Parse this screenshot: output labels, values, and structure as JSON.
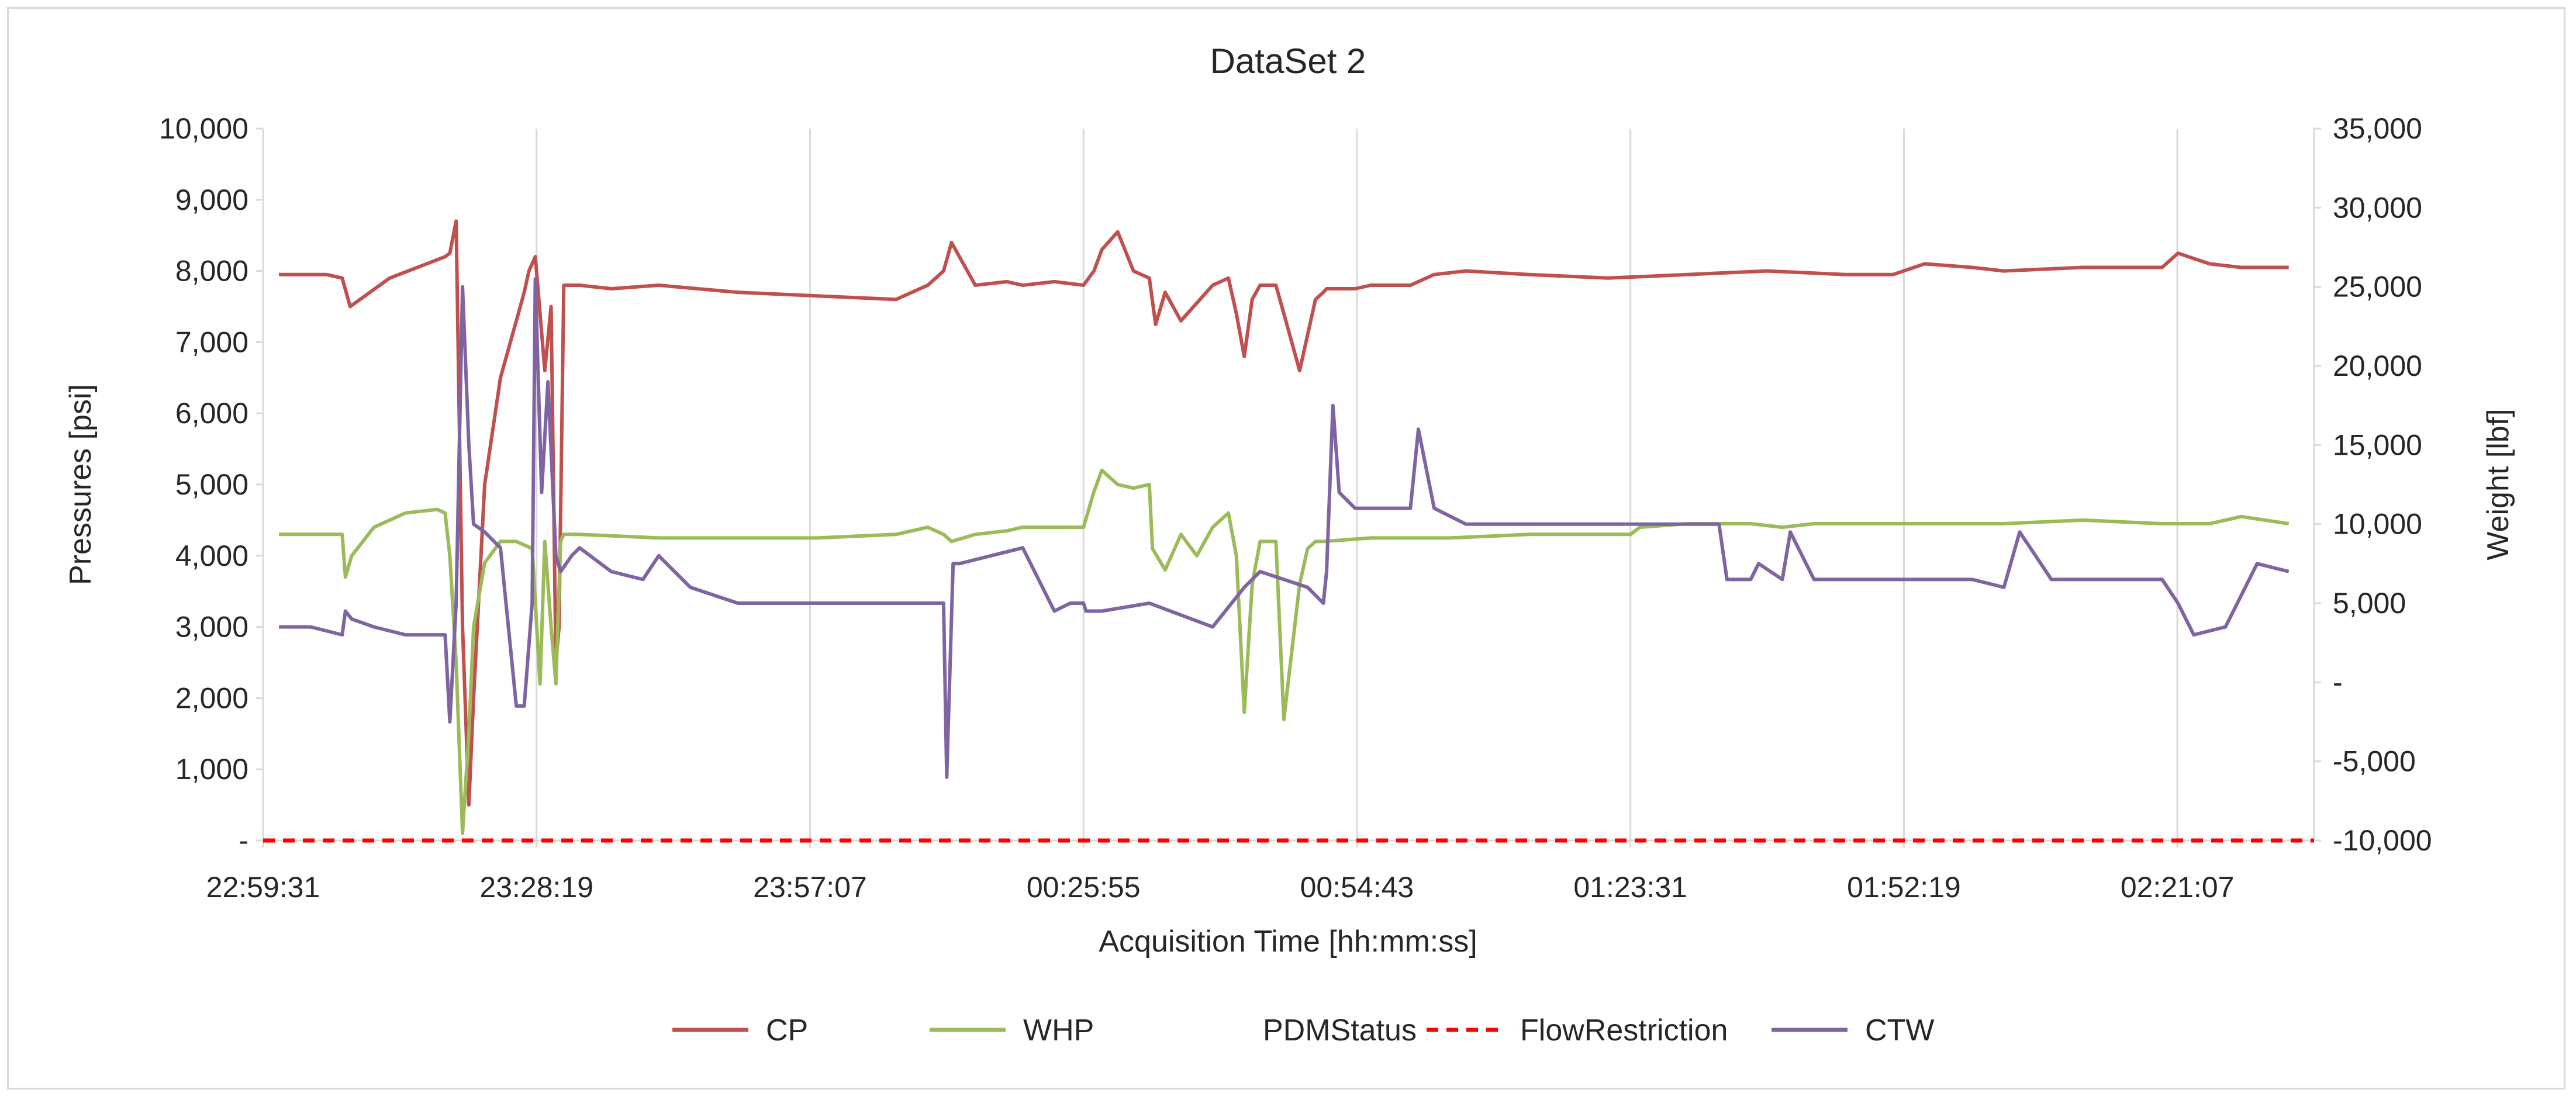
{
  "chart_data": {
    "type": "line",
    "title": "DataSet 2",
    "xlabel": "Acquisition Time [hh:mm:ss]",
    "ylabel": "Pressures [psi]",
    "y2label": "Weight [lbf]",
    "x_tick_labels": [
      "22:59:31",
      "23:28:19",
      "23:57:07",
      "00:25:55",
      "00:54:43",
      "01:23:31",
      "01:52:19",
      "02:21:07"
    ],
    "x_ticks_seconds": [
      0,
      1728,
      3456,
      5184,
      6912,
      8640,
      10368,
      12096
    ],
    "x_range_seconds": [
      0,
      12960
    ],
    "y_tick_labels": [
      "-",
      "1,000",
      "2,000",
      "3,000",
      "4,000",
      "5,000",
      "6,000",
      "7,000",
      "8,000",
      "9,000",
      "10,000"
    ],
    "ylim": [
      0,
      10000
    ],
    "y2_tick_labels": [
      "-10,000",
      "-5,000",
      "-",
      "5,000",
      "10,000",
      "15,000",
      "20,000",
      "25,000",
      "30,000",
      "35,000"
    ],
    "y2lim": [
      -10000,
      35000
    ],
    "grid": "vertical",
    "legend_position": "bottom",
    "series": [
      {
        "name": "CP",
        "axis": "left",
        "color": "#c0504d",
        "style": "solid",
        "x": [
          100,
          400,
          500,
          550,
          800,
          1150,
          1180,
          1220,
          1260,
          1300,
          1330,
          1400,
          1500,
          1600,
          1650,
          1680,
          1720,
          1780,
          1820,
          1850,
          1870,
          1900,
          2000,
          2200,
          2500,
          3000,
          3500,
          4000,
          4200,
          4300,
          4350,
          4500,
          4700,
          4800,
          5000,
          5184,
          5250,
          5300,
          5400,
          5500,
          5600,
          5640,
          5700,
          5800,
          6000,
          6100,
          6150,
          6200,
          6250,
          6300,
          6350,
          6400,
          6450,
          6550,
          6650,
          6700,
          6720,
          6800,
          6900,
          7000,
          7200,
          7250,
          7300,
          7400,
          7600,
          8000,
          8500,
          9000,
          9500,
          10000,
          10300,
          10500,
          10800,
          11000,
          11500,
          12000,
          12100,
          12300,
          12500,
          12800
        ],
        "y": [
          7950,
          7950,
          7900,
          7500,
          7900,
          8200,
          8250,
          8700,
          3000,
          500,
          2000,
          5000,
          6500,
          7300,
          7700,
          8000,
          8200,
          6600,
          7500,
          2500,
          3000,
          7800,
          7800,
          7750,
          7800,
          7700,
          7650,
          7600,
          7800,
          8000,
          8400,
          7800,
          7850,
          7800,
          7850,
          7800,
          8000,
          8300,
          8550,
          8000,
          7900,
          7250,
          7700,
          7300,
          7800,
          7900,
          7400,
          6800,
          7600,
          7800,
          7800,
          7800,
          7400,
          6600,
          7600,
          7700,
          7750,
          7750,
          7750,
          7800,
          7800,
          7800,
          7850,
          7950,
          8000,
          7950,
          7900,
          7950,
          8000,
          7950,
          7950,
          8100,
          8050,
          8000,
          8050,
          8050,
          8250,
          8100,
          8050,
          8050
        ]
      },
      {
        "name": "WHP",
        "axis": "left",
        "color": "#9bbb59",
        "style": "solid",
        "x": [
          100,
          500,
          520,
          560,
          700,
          900,
          1100,
          1150,
          1180,
          1220,
          1260,
          1300,
          1330,
          1400,
          1500,
          1600,
          1700,
          1750,
          1780,
          1820,
          1850,
          1880,
          1900,
          2000,
          2500,
          3000,
          3500,
          4000,
          4200,
          4300,
          4350,
          4500,
          4700,
          4800,
          5000,
          5184,
          5250,
          5300,
          5400,
          5500,
          5600,
          5620,
          5700,
          5800,
          5900,
          6000,
          6100,
          6150,
          6200,
          6250,
          6300,
          6350,
          6400,
          6450,
          6550,
          6600,
          6650,
          6700,
          7000,
          7500,
          8000,
          8640,
          8700,
          9000,
          9200,
          9400,
          9600,
          9800,
          10000,
          10300,
          10500,
          10800,
          11000,
          11500,
          12000,
          12300,
          12500,
          12800
        ],
        "y": [
          4300,
          4300,
          3700,
          4000,
          4400,
          4600,
          4650,
          4600,
          4000,
          2500,
          100,
          1500,
          3000,
          3900,
          4200,
          4200,
          4100,
          2200,
          4200,
          3000,
          2200,
          4200,
          4300,
          4300,
          4250,
          4250,
          4250,
          4300,
          4400,
          4300,
          4200,
          4300,
          4350,
          4400,
          4400,
          4400,
          4900,
          5200,
          5000,
          4950,
          5000,
          4100,
          3800,
          4300,
          4000,
          4400,
          4600,
          4000,
          1800,
          3600,
          4200,
          4200,
          4200,
          1700,
          3600,
          4100,
          4200,
          4200,
          4250,
          4250,
          4300,
          4300,
          4400,
          4450,
          4450,
          4450,
          4400,
          4450,
          4450,
          4450,
          4450,
          4450,
          4450,
          4500,
          4450,
          4450,
          4550,
          4450
        ]
      },
      {
        "name": "PDMStatus",
        "axis": "left",
        "color": "#ffffff",
        "style": "none",
        "x": [],
        "y": []
      },
      {
        "name": "FlowRestriction",
        "axis": "left",
        "color": "#ff0000",
        "style": "dashed",
        "x": [
          0,
          12960
        ],
        "y": [
          0,
          0
        ]
      },
      {
        "name": "CTW",
        "axis": "right",
        "color": "#8064a2",
        "style": "solid",
        "x": [
          100,
          300,
          500,
          520,
          560,
          700,
          900,
          1150,
          1180,
          1220,
          1260,
          1300,
          1330,
          1400,
          1450,
          1500,
          1600,
          1650,
          1700,
          1720,
          1760,
          1800,
          1850,
          1880,
          1950,
          2000,
          2200,
          2400,
          2500,
          2700,
          3000,
          3300,
          3600,
          3900,
          4200,
          4300,
          4320,
          4360,
          4400,
          4600,
          4800,
          5000,
          5100,
          5184,
          5200,
          5300,
          5600,
          6000,
          6200,
          6300,
          6600,
          6700,
          6720,
          6760,
          6800,
          6900,
          7000,
          7200,
          7250,
          7300,
          7400,
          7600,
          8000,
          8640,
          9000,
          9200,
          9250,
          9400,
          9450,
          9600,
          9650,
          9800,
          10000,
          10300,
          10500,
          10800,
          11000,
          11100,
          11300,
          11500,
          12000,
          12100,
          12200,
          12400,
          12600,
          12800
        ],
        "y": [
          3500,
          3500,
          3000,
          4500,
          4000,
          3500,
          3000,
          3000,
          -2500,
          5000,
          25000,
          15000,
          10000,
          9500,
          9000,
          8500,
          -1500,
          -1500,
          5000,
          25500,
          12000,
          19000,
          8000,
          7000,
          8000,
          8500,
          7000,
          6500,
          8000,
          6000,
          5000,
          5000,
          5000,
          5000,
          5000,
          5000,
          -6000,
          7500,
          7500,
          8000,
          8500,
          4500,
          5000,
          5000,
          4500,
          4500,
          5000,
          3500,
          6000,
          7000,
          6000,
          5000,
          7000,
          17500,
          12000,
          11000,
          11000,
          11000,
          11000,
          16000,
          11000,
          10000,
          10000,
          10000,
          10000,
          10000,
          6500,
          6500,
          7500,
          6500,
          9500,
          6500,
          6500,
          6500,
          6500,
          6500,
          6000,
          9500,
          6500,
          6500,
          6500,
          5000,
          3000,
          3500,
          7500,
          7000
        ]
      }
    ]
  }
}
